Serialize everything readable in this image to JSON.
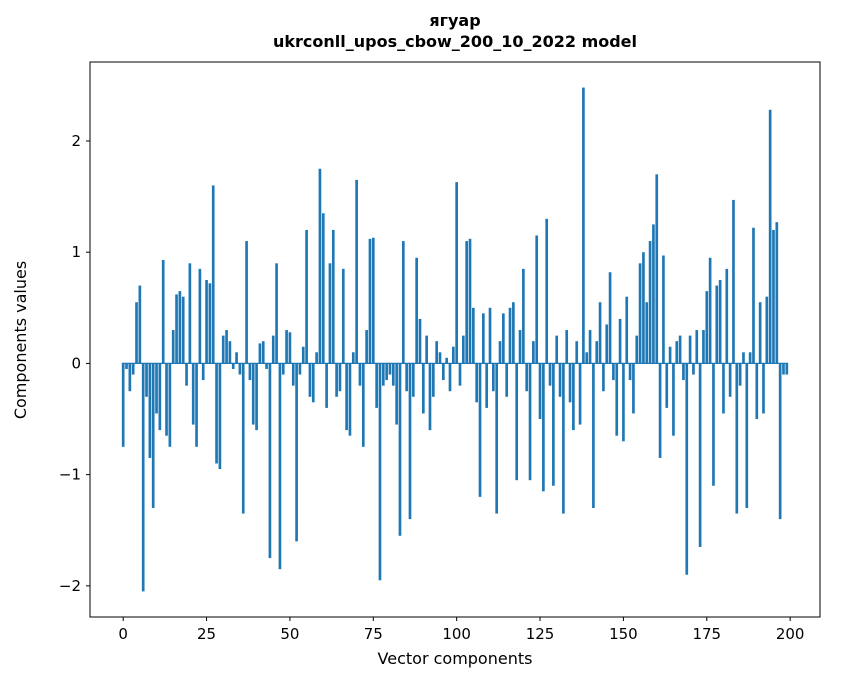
{
  "figure": {
    "title_line1": "ягуар",
    "title_line2": "ukrconll_upos_cbow_200_10_2022 model"
  },
  "chart_data": {
    "type": "bar",
    "title": "ягуар\nukrconll_upos_cbow_200_10_2022 model",
    "xlabel": "Vector components",
    "ylabel": "Components values",
    "bar_color": "#1f77b4",
    "axis_color": "#000000",
    "xlim": [
      -9.95,
      208.95
    ],
    "ylim": [
      -2.28,
      2.71
    ],
    "xticks": [
      0,
      25,
      50,
      75,
      100,
      125,
      150,
      175,
      200
    ],
    "yticks": [
      -2,
      -1,
      0,
      1,
      2
    ],
    "x_start": 0,
    "bar_width": 0.8,
    "grid": false,
    "legend": false,
    "values": [
      -0.75,
      -0.05,
      -0.25,
      -0.1,
      0.55,
      0.7,
      -2.05,
      -0.3,
      -0.85,
      -1.3,
      -0.45,
      -0.6,
      0.93,
      -0.65,
      -0.75,
      0.3,
      0.62,
      0.65,
      0.6,
      -0.2,
      0.9,
      -0.55,
      -0.75,
      0.85,
      -0.15,
      0.75,
      0.72,
      1.6,
      -0.9,
      -0.95,
      0.25,
      0.3,
      0.2,
      -0.05,
      0.1,
      -0.1,
      -1.35,
      1.1,
      -0.15,
      -0.55,
      -0.6,
      0.18,
      0.2,
      -0.05,
      -1.75,
      0.25,
      0.9,
      -1.85,
      -0.1,
      0.3,
      0.28,
      -0.2,
      -1.6,
      -0.1,
      0.15,
      1.2,
      -0.3,
      -0.35,
      0.1,
      1.75,
      1.35,
      -0.4,
      0.9,
      1.2,
      -0.3,
      -0.25,
      0.85,
      -0.6,
      -0.65,
      0.1,
      1.65,
      -0.2,
      -0.75,
      0.3,
      1.12,
      1.13,
      -0.4,
      -1.95,
      -0.2,
      -0.15,
      -0.1,
      -0.2,
      -0.55,
      -1.55,
      1.1,
      -0.25,
      -1.4,
      -0.3,
      0.95,
      0.4,
      -0.45,
      0.25,
      -0.6,
      -0.3,
      0.2,
      0.1,
      -0.15,
      0.05,
      -0.25,
      0.15,
      1.63,
      -0.2,
      0.25,
      1.1,
      1.12,
      0.5,
      -0.35,
      -1.2,
      0.45,
      -0.4,
      0.5,
      -0.25,
      -1.35,
      0.2,
      0.45,
      -0.3,
      0.5,
      0.55,
      -1.05,
      0.3,
      0.85,
      -0.25,
      -1.05,
      0.2,
      1.15,
      -0.5,
      -1.15,
      1.3,
      -0.2,
      -1.1,
      0.25,
      -0.3,
      -1.35,
      0.3,
      -0.35,
      -0.6,
      0.2,
      -0.55,
      2.48,
      0.1,
      0.3,
      -1.3,
      0.2,
      0.55,
      -0.25,
      0.35,
      0.82,
      -0.15,
      -0.65,
      0.4,
      -0.7,
      0.6,
      -0.15,
      -0.45,
      0.25,
      0.9,
      1.0,
      0.55,
      1.1,
      1.25,
      1.7,
      -0.85,
      0.97,
      -0.4,
      0.15,
      -0.65,
      0.2,
      0.25,
      -0.15,
      -1.9,
      0.25,
      -0.1,
      0.3,
      -1.65,
      0.3,
      0.65,
      0.95,
      -1.1,
      0.7,
      0.75,
      -0.45,
      0.85,
      -0.3,
      1.47,
      -1.35,
      -0.2,
      0.1,
      -1.3,
      0.1,
      1.22,
      -0.5,
      0.55,
      -0.45,
      0.6,
      2.28,
      1.2,
      1.27,
      -1.4,
      -0.1,
      -0.1
    ]
  }
}
